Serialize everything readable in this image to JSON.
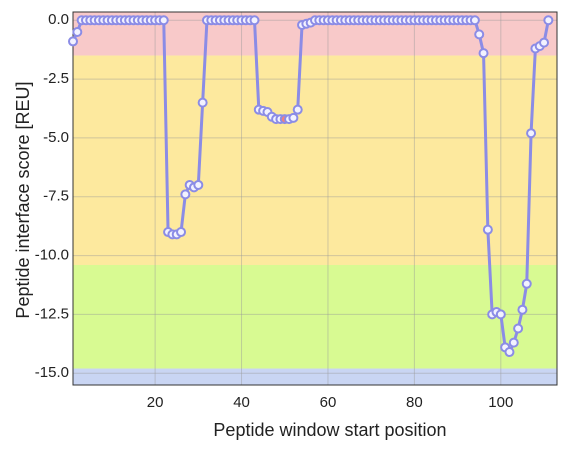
{
  "chart_data": {
    "type": "line",
    "xlabel": "Peptide window start position",
    "ylabel": "Peptide interface score [REU]",
    "x": [
      1,
      2,
      3,
      4,
      5,
      6,
      7,
      8,
      9,
      10,
      11,
      12,
      13,
      14,
      15,
      16,
      17,
      18,
      19,
      20,
      21,
      22,
      23,
      24,
      25,
      26,
      27,
      28,
      29,
      30,
      31,
      32,
      33,
      34,
      35,
      36,
      37,
      38,
      39,
      40,
      41,
      42,
      43,
      44,
      45,
      46,
      47,
      48,
      49,
      50,
      51,
      52,
      53,
      54,
      55,
      56,
      57,
      58,
      59,
      60,
      61,
      62,
      63,
      64,
      65,
      66,
      67,
      68,
      69,
      70,
      71,
      72,
      73,
      74,
      75,
      76,
      77,
      78,
      79,
      80,
      81,
      82,
      83,
      84,
      85,
      86,
      87,
      88,
      89,
      90,
      91,
      92,
      93,
      94,
      95,
      96,
      97,
      98,
      99,
      100,
      101,
      102,
      103,
      104,
      105,
      106,
      107,
      108,
      109,
      110,
      111
    ],
    "series": [
      {
        "color": "#8b8ce6",
        "values": [
          -0.9,
          -0.5,
          0,
          0,
          0,
          0,
          0,
          0,
          0,
          0,
          0,
          0,
          0,
          0,
          0,
          0,
          0,
          0,
          0,
          0,
          0,
          0,
          -9.0,
          -9.1,
          -9.1,
          -9.0,
          -7.4,
          -7.0,
          -7.1,
          -7.0,
          -3.5,
          0,
          0,
          0,
          0,
          0,
          0,
          0,
          0,
          0,
          0,
          0,
          0,
          -3.8,
          -3.85,
          -3.9,
          -4.1,
          -4.2,
          -4.2,
          -4.2,
          -4.2,
          -4.15,
          -3.8,
          -0.2,
          -0.15,
          -0.1,
          0,
          0,
          0,
          0,
          0,
          0,
          0,
          0,
          0,
          0,
          0,
          0,
          0,
          0,
          0,
          0,
          0,
          0,
          0,
          0,
          0,
          0,
          0,
          0,
          0,
          0,
          0,
          0,
          0,
          0,
          0,
          0,
          0,
          0,
          0,
          0,
          0,
          0,
          -0.6,
          -1.4,
          -8.9,
          -12.5,
          -12.4,
          -12.5,
          -13.9,
          -14.1,
          -13.7,
          -13.1,
          -12.3,
          -11.2,
          -4.8,
          -1.2,
          -1.1,
          -0.95,
          0
        ]
      }
    ],
    "highlight_x": 50,
    "highlight_color": "#f08080",
    "bands": [
      {
        "range": [
          -1.5,
          0.35
        ],
        "color": "#f8c9c9"
      },
      {
        "range": [
          -10.4,
          -1.5
        ],
        "color": "#fde99e"
      },
      {
        "range": [
          -14.8,
          -10.4
        ],
        "color": "#d8fa92"
      },
      {
        "range": [
          -15.5,
          -14.8
        ],
        "color": "#c9d5f3"
      }
    ],
    "xlim": [
      1,
      113
    ],
    "ylim": [
      -15.5,
      0.35
    ],
    "xticks": [
      20,
      40,
      60,
      80,
      100
    ],
    "yticks": [
      {
        "value": 0,
        "label": "0.0"
      },
      -2.5,
      {
        "value": -5,
        "label": "-5.0"
      },
      -7.5,
      {
        "value": -10,
        "label": "-10.0"
      },
      -12.5,
      {
        "value": -15,
        "label": "-15.0"
      }
    ],
    "grid": true
  }
}
